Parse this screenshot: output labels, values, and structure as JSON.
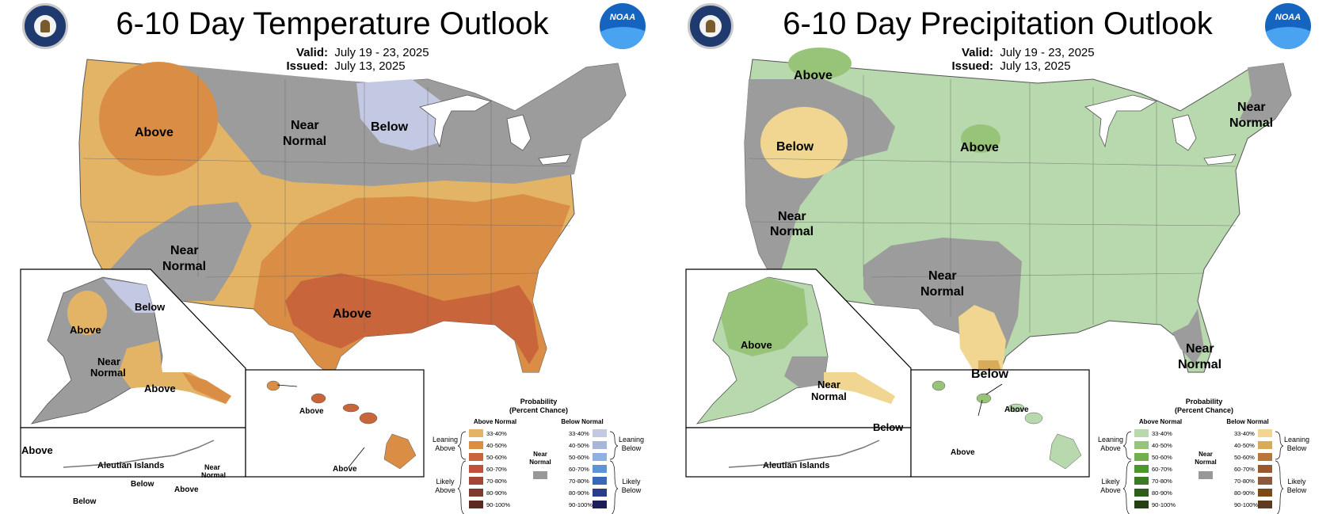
{
  "temperature": {
    "title": "6-10 Day Temperature Outlook",
    "valid_label": "Valid:",
    "valid_value": "July 19 - 23, 2025",
    "issued_label": "Issued:",
    "issued_value": "July 13, 2025",
    "noaa_logo_text": "NOAA",
    "region_labels": {
      "above_nw": "Above",
      "near_normal_north_1": "Near",
      "near_normal_north_2": "Normal",
      "below_mn": "Below",
      "near_normal_sw_1": "Near",
      "near_normal_sw_2": "Normal",
      "above_south": "Above",
      "ak_below": "Below",
      "ak_above_w": "Above",
      "ak_near_1": "Near",
      "ak_near_2": "Normal",
      "ak_above_s": "Above",
      "ak_above_sw": "Above",
      "aleutian_title": "Aleutian Islands",
      "aleut_below_1": "Below",
      "aleut_below_2": "Below",
      "aleut_above": "Above",
      "aleut_near_1": "Near",
      "aleut_near_2": "Normal",
      "hi_above_1": "Above",
      "hi_above_2": "Above"
    }
  },
  "precipitation": {
    "title": "6-10 Day Precipitation Outlook",
    "valid_label": "Valid:",
    "valid_value": "July 19 - 23, 2025",
    "issued_label": "Issued:",
    "issued_value": "July 13, 2025",
    "noaa_logo_text": "NOAA",
    "region_labels": {
      "above_n": "Above",
      "below_nw": "Below",
      "above_nd": "Above",
      "near_ne_1": "Near",
      "near_ne_2": "Normal",
      "near_w_1": "Near",
      "near_w_2": "Normal",
      "near_s_1": "Near",
      "near_s_2": "Normal",
      "below_tx": "Below",
      "near_fl_1": "Near",
      "near_fl_2": "Normal",
      "ak_above": "Above",
      "ak_near_1": "Near",
      "ak_near_2": "Normal",
      "ak_below": "Below",
      "aleutian_title": "Aleutian Islands",
      "hi_above_1": "Above",
      "hi_above_2": "Above"
    }
  },
  "legend": {
    "title_1": "Probability",
    "title_2": "(Percent Chance)",
    "above_header": "Above Normal",
    "below_header": "Below Normal",
    "leaning_above_1": "Leaning",
    "leaning_above_2": "Above",
    "likely_above_1": "Likely",
    "likely_above_2": "Above",
    "leaning_below_1": "Leaning",
    "leaning_below_2": "Below",
    "likely_below_1": "Likely",
    "likely_below_2": "Below",
    "near_1": "Near",
    "near_2": "Normal",
    "ranges": [
      "33-40%",
      "40-50%",
      "50-60%",
      "60-70%",
      "70-80%",
      "80-90%",
      "90-100%"
    ],
    "temp_above_colors": [
      "#e3b466",
      "#d98d45",
      "#c9653a",
      "#c0503a",
      "#a7443a",
      "#7f3a30",
      "#5c2a22"
    ],
    "temp_below_colors": [
      "#c3c8e3",
      "#a8b6d8",
      "#8fb0e0",
      "#5f93d8",
      "#3a68b8",
      "#2a3c8c",
      "#1c1c58"
    ],
    "precip_above_colors": [
      "#b8d8ae",
      "#98c47a",
      "#6fb04a",
      "#4d962e",
      "#3e7a25",
      "#2f5e1c",
      "#243f14"
    ],
    "precip_below_colors": [
      "#f0d690",
      "#d9ab58",
      "#b8773a",
      "#98592e",
      "#8a5a3a",
      "#7a4a18",
      "#5e3a20"
    ],
    "near_color": "#999999"
  },
  "map_colors": {
    "gray": "#9c9c9c",
    "temp_lean_above": "#e3b466",
    "temp_above_40": "#d98d45",
    "temp_above_50": "#c9653a",
    "temp_lean_below": "#c3c8e3",
    "precip_lean_above": "#b8d8ae",
    "precip_above_40": "#98c47a",
    "precip_lean_below": "#f0d690",
    "precip_below_40": "#d9ab58"
  }
}
